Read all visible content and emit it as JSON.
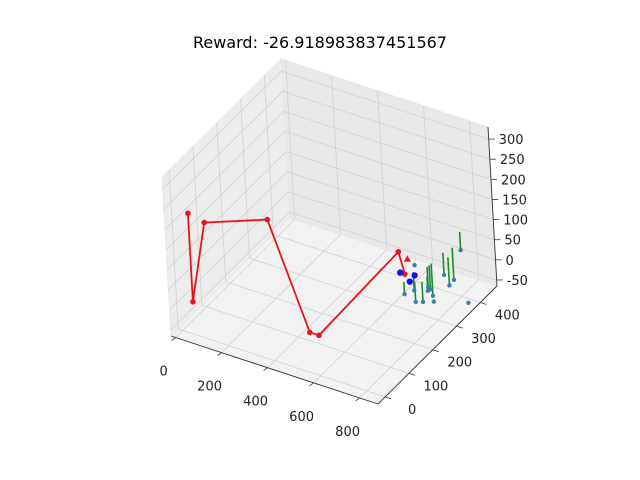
{
  "title": "Reward: -26.918983837451567",
  "chart_data": {
    "type": "line",
    "title": "Reward: -26.918983837451567",
    "projection": "3d",
    "grid": true,
    "x_ticks": [
      "0",
      "200",
      "400",
      "600",
      "800"
    ],
    "y_ticks": [
      "0",
      "100",
      "200",
      "300",
      "400"
    ],
    "z_ticks": [
      "-50",
      "0",
      "50",
      "100",
      "150",
      "200",
      "250",
      "300"
    ],
    "xlim": [
      -20,
      880
    ],
    "ylim": [
      -30,
      470
    ],
    "zlim": [
      -65,
      330
    ],
    "colors": {
      "path": "#e8141a",
      "agent": "#1414e6",
      "target_marker": "#e8141a",
      "obstacles": "#1a8c2a",
      "obstacle_points": "#3d7fa8",
      "background_points": "#8fa8c0",
      "panes": "#f2f2f2",
      "grid": "#d0d0d0"
    },
    "series": [
      {
        "role": "path",
        "marker": "circle",
        "points": [
          [
            30,
            20,
            220
          ],
          [
            30,
            20,
            0
          ],
          [
            100,
            20,
            210
          ],
          [
            380,
            20,
            270
          ],
          [
            540,
            20,
            20
          ],
          [
            580,
            20,
            20
          ],
          [
            830,
            130,
            210
          ],
          [
            820,
            160,
            135
          ]
        ]
      },
      {
        "role": "agent",
        "marker": "circle",
        "points": [
          [
            800,
            160,
            135
          ],
          [
            840,
            160,
            120
          ],
          [
            835,
            185,
            120
          ]
        ]
      },
      {
        "role": "target",
        "marker": "triangle",
        "points": [
          [
            835,
            160,
            175
          ]
        ]
      },
      {
        "role": "obstacles",
        "segments": [
          [
            [
              780,
              190,
              60
            ],
            [
              780,
              190,
              90
            ]
          ],
          [
            [
              785,
              225,
              50
            ],
            [
              785,
              225,
              95
            ]
          ],
          [
            [
              800,
              215,
              30
            ],
            [
              800,
              215,
              80
            ]
          ],
          [
            [
              810,
              235,
              20
            ],
            [
              810,
              235,
              70
            ]
          ],
          [
            [
              820,
              250,
              50
            ],
            [
              820,
              250,
              100
            ]
          ],
          [
            [
              835,
              245,
              50
            ],
            [
              835,
              245,
              110
            ]
          ],
          [
            [
              850,
              240,
              40
            ],
            [
              850,
              240,
              120
            ]
          ],
          [
            [
              860,
              280,
              70
            ],
            [
              860,
              280,
              125
            ]
          ],
          [
            [
              870,
              290,
              40
            ],
            [
              870,
              290,
              110
            ]
          ],
          [
            [
              880,
              300,
              50
            ],
            [
              880,
              300,
              130
            ]
          ],
          [
            [
              845,
              225,
              60
            ],
            [
              845,
              225,
              95
            ]
          ],
          [
            [
              895,
              320,
              115
            ],
            [
              895,
              320,
              160
            ]
          ]
        ]
      },
      {
        "role": "points",
        "marker": "circle",
        "points": [
          [
            780,
            190,
            60
          ],
          [
            785,
            225,
            50
          ],
          [
            800,
            215,
            30
          ],
          [
            810,
            235,
            20
          ],
          [
            820,
            250,
            50
          ],
          [
            835,
            245,
            50
          ],
          [
            850,
            240,
            40
          ],
          [
            860,
            280,
            70
          ],
          [
            870,
            290,
            40
          ],
          [
            880,
            300,
            50
          ],
          [
            845,
            225,
            60
          ],
          [
            895,
            320,
            115
          ],
          [
            905,
            330,
            -20
          ],
          [
            830,
            260,
            10
          ],
          [
            815,
            205,
            130
          ]
        ]
      }
    ]
  }
}
